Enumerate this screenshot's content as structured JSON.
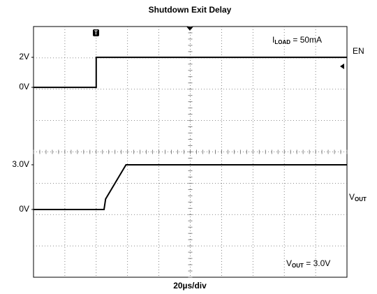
{
  "chart_data": [
    {
      "type": "line",
      "title": "Shutdown Exit Delay",
      "x_label": "20µs/div",
      "annotation": {
        "main": "I",
        "sub": "LOAD",
        "rest": " = 50mA"
      },
      "xlim": [
        0,
        200
      ],
      "ylim": [
        -12.65,
        4.05
      ],
      "yticks": [
        {
          "value": 2,
          "label": "2V"
        },
        {
          "value": 0,
          "label": "0V"
        }
      ],
      "x": [
        0,
        40,
        40,
        200
      ],
      "series": [
        {
          "name": "EN",
          "color": "#000000",
          "values": [
            0,
            0,
            2,
            2
          ]
        }
      ]
    },
    {
      "type": "line",
      "annotation": {
        "main": "V",
        "sub": "OUT",
        "rest": " = 3.0V"
      },
      "xlim": [
        0,
        200
      ],
      "ylim": [
        -4.55,
        12.28
      ],
      "yticks": [
        {
          "value": 3,
          "label": "3.0V"
        },
        {
          "value": 0,
          "label": "0V"
        }
      ],
      "x": [
        0,
        45,
        46,
        59,
        200
      ],
      "series": [
        {
          "name": "V",
          "name_sub": "OUT",
          "color": "#000000",
          "values": [
            0,
            0,
            0.7,
            3,
            3
          ]
        }
      ]
    }
  ]
}
